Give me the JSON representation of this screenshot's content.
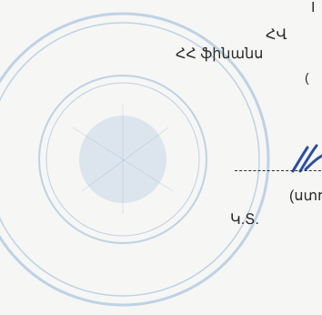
{
  "document": {
    "line1": "I",
    "line2": "ՀՎ",
    "line3": "ՀՀ ֆինանս",
    "line4": "(",
    "line5": "(ստոր",
    "mp": "Կ.Տ."
  },
  "colors": {
    "stamp": "#8fb4d8",
    "signature": "#2a4fa0",
    "text": "#2a2a2a"
  }
}
